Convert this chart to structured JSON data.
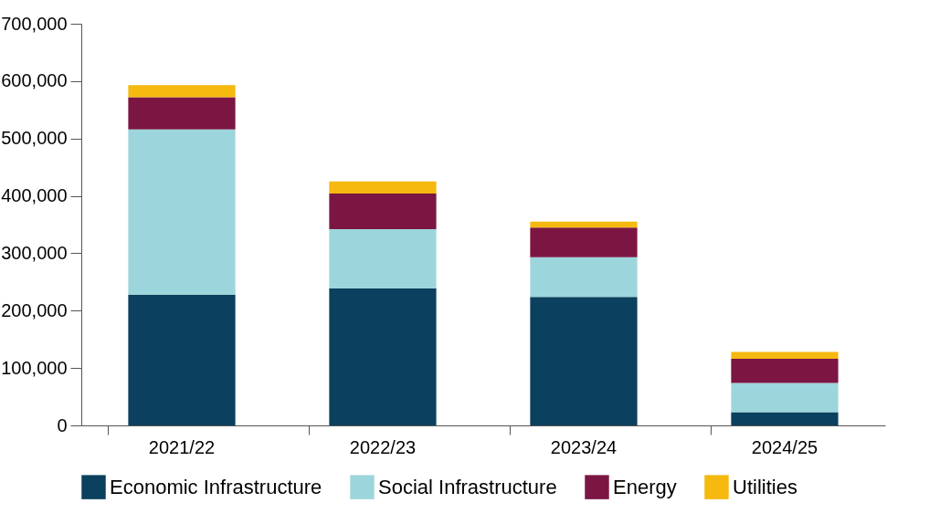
{
  "chart_data": {
    "type": "bar",
    "stacked": true,
    "categories": [
      "2021/22",
      "2022/23",
      "2023/24",
      "2024/25"
    ],
    "series": [
      {
        "name": "Economic Infrastructure",
        "color": "#0b405e",
        "values": [
          228000,
          239000,
          224000,
          23000
        ]
      },
      {
        "name": "Social Infrastructure",
        "color": "#9dd5dc",
        "values": [
          288000,
          103000,
          69000,
          51000
        ]
      },
      {
        "name": "Energy",
        "color": "#7b1642",
        "values": [
          56000,
          62000,
          52000,
          42000
        ]
      },
      {
        "name": "Utilities",
        "color": "#f5b90f",
        "values": [
          21000,
          21000,
          10000,
          12000
        ]
      }
    ],
    "ylim": [
      0,
      700000
    ],
    "yticks": [
      0,
      {
        "value": 100000,
        "label": "100,000"
      },
      {
        "value": 200000,
        "label": "200,000"
      },
      {
        "value": 300000,
        "label": "300,000"
      },
      {
        "value": 400000,
        "label": "400,000"
      },
      {
        "value": 500000,
        "label": "500,000"
      },
      {
        "value": 600000,
        "label": "600,000"
      },
      {
        "value": 700000,
        "label": "700,000"
      }
    ],
    "grid": false,
    "legend": "bottom"
  }
}
